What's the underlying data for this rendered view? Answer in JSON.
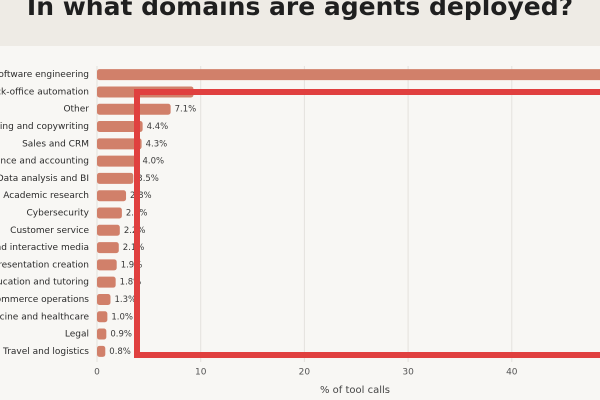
{
  "chart_data": {
    "type": "bar",
    "orientation": "horizontal",
    "title": "In what domains are agents deployed?",
    "x_label": "% of tool calls",
    "categories": [
      "Software engineering",
      "Back-office automation",
      "Other",
      "Marketing and copywriting",
      "Sales and CRM",
      "Finance and accounting",
      "Data analysis and BI",
      "Academic research",
      "Cybersecurity",
      "Customer service",
      "Gaming and interactive media",
      "Document and presentation creation",
      "Education and tutoring",
      "E-commerce operations",
      "Medicine and healthcare",
      "Legal",
      "Travel and logistics"
    ],
    "values": [
      49.7,
      9.3,
      7.1,
      4.4,
      4.3,
      4.0,
      3.5,
      2.8,
      2.4,
      2.2,
      2.1,
      1.9,
      1.8,
      1.3,
      1.0,
      0.9,
      0.8
    ],
    "value_labels": [
      null,
      null,
      "7.1%",
      "4.4%",
      "4.3%",
      "4.0%",
      "3.5%",
      "2.8%",
      "2.4%",
      "2.2%",
      "2.1%",
      "1.9%",
      "1.8%",
      "1.3%",
      "1.0%",
      "0.9%",
      "0.8%"
    ],
    "color": "#d1806a",
    "xlim": [
      0,
      50
    ],
    "xticks": [
      0,
      10,
      20,
      30,
      40
    ],
    "grid": true
  }
}
